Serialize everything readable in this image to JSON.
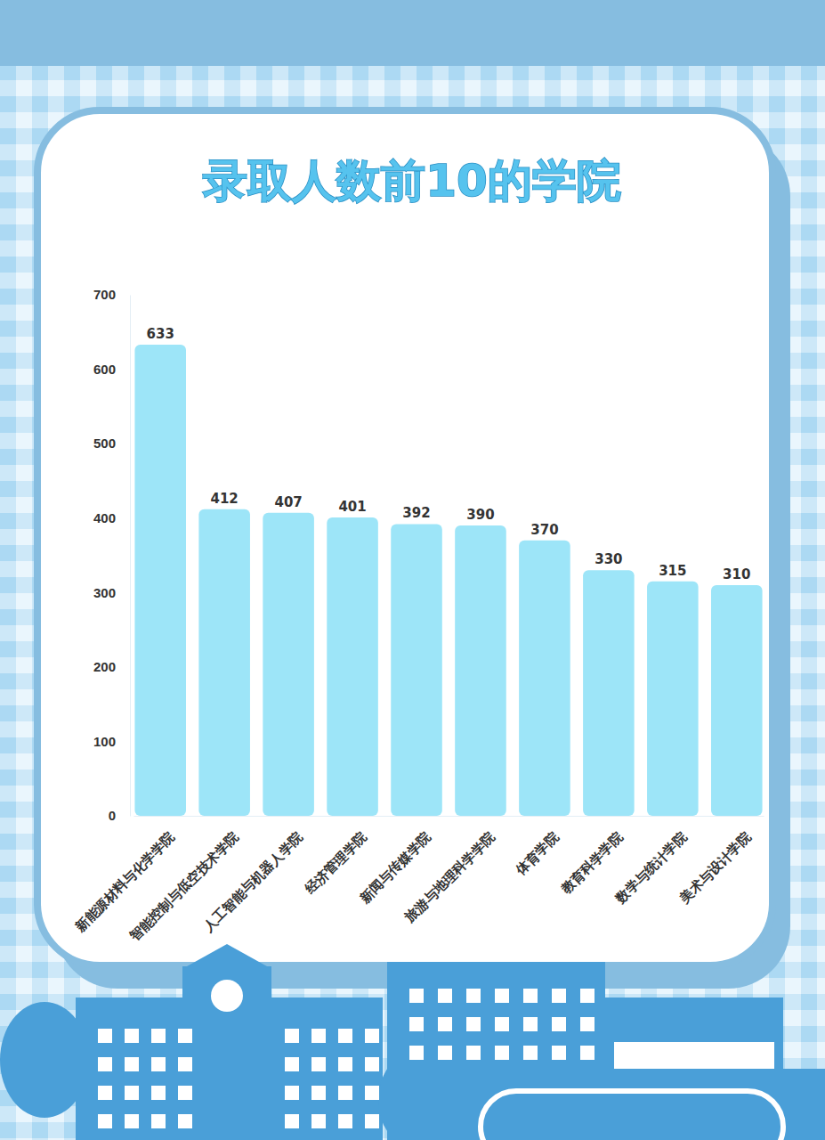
{
  "chart_data": {
    "type": "bar",
    "title": "录取人数前10的学院",
    "categories": [
      "新能源材料与化学学院",
      "智能控制与低空技术学院",
      "人工智能与机器人学院",
      "经济管理学院",
      "新闻与传媒学院",
      "旅游与地理科学学院",
      "体育学院",
      "教育科学学院",
      "数学与统计学院",
      "美术与设计学院"
    ],
    "values": [
      633,
      412,
      407,
      401,
      392,
      390,
      370,
      330,
      315,
      310
    ],
    "color": "#9de5f8",
    "ylim": [
      0,
      700
    ],
    "yticks": [
      0,
      100,
      200,
      300,
      400,
      500,
      600,
      700
    ],
    "grid": false,
    "data_labels": true
  }
}
